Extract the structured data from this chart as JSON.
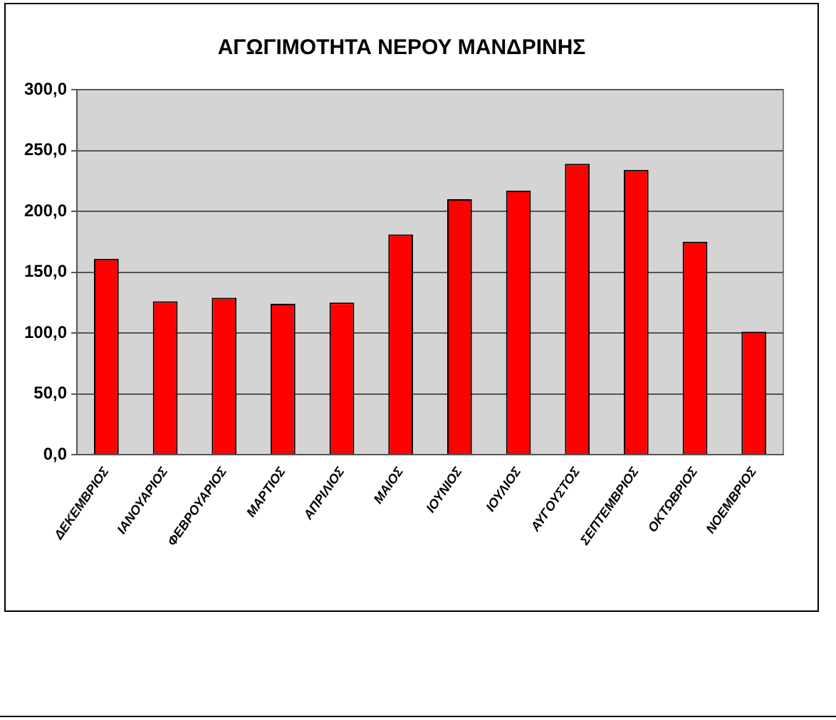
{
  "chart_data": {
    "type": "bar",
    "title": "ΑΓΩΓΙΜΟΤΗΤΑ ΝΕΡΟΥ ΜΑΝΔΡΙΝΗΣ",
    "categories": [
      "ΔΕΚΕΜΒΡΙΟΣ",
      "ΙΑΝΟΥΑΡΙΟΣ",
      "ΦΕΒΡΟΥΑΡΙΟΣ",
      "ΜΑΡΤΙΟΣ",
      "ΑΠΡΙΛΙΟΣ",
      "ΜΑΙΟΣ",
      "ΙΟΥΝΙΟΣ",
      "ΙΟΥΛΙΟΣ",
      "ΑΥΓΟΥΣΤΟΣ",
      "ΣΕΠΤΕΜΒΡΙΟΣ",
      "ΟΚΤΩΒΡΙΟΣ",
      "ΝΟΕΜΒΡΙΟΣ"
    ],
    "values": [
      161,
      126,
      129,
      124,
      125,
      181,
      210,
      217,
      239,
      234,
      175,
      101
    ],
    "color": "#ff0000",
    "ylim": [
      0,
      300
    ],
    "yticks": [
      {
        "value": 0,
        "label": "0,0"
      },
      {
        "value": 50,
        "label": "50,0"
      },
      {
        "value": 100,
        "label": "100,0"
      },
      {
        "value": 150,
        "label": "150,0"
      },
      {
        "value": 200,
        "label": "200,0"
      },
      {
        "value": 250,
        "label": "250,0"
      },
      {
        "value": 300,
        "label": "300,0"
      }
    ],
    "grid": "y",
    "legend": false
  }
}
